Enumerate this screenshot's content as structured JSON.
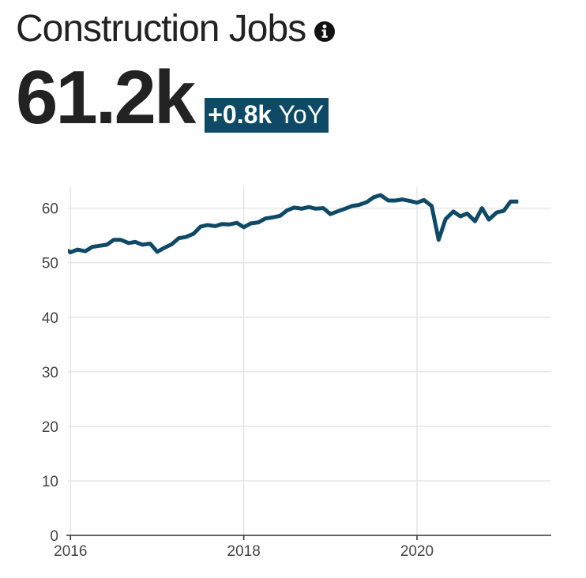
{
  "header": {
    "title": "Construction Jobs",
    "info_icon": "info-icon"
  },
  "kpi": {
    "value": "61.2k",
    "delta": "+0.8k",
    "delta_suffix": "YoY",
    "badge_color": "#0e4966"
  },
  "chart_data": {
    "type": "line",
    "title": "",
    "xlabel": "",
    "ylabel": "",
    "xlim": [
      2015.97,
      2021.55
    ],
    "ylim": [
      0,
      64
    ],
    "x_ticks": [
      2016,
      2018,
      2020
    ],
    "x_tick_labels": [
      "2016",
      "2018",
      "2020"
    ],
    "y_ticks": [
      0,
      10,
      20,
      30,
      40,
      50,
      60
    ],
    "y_tick_labels": [
      "0",
      "10",
      "20",
      "30",
      "40",
      "50",
      "60"
    ],
    "grid": true,
    "line_color": "#0e4966",
    "series": [
      {
        "name": "",
        "x": [
          2015.92,
          2016.0,
          2016.08,
          2016.17,
          2016.25,
          2016.33,
          2016.42,
          2016.5,
          2016.58,
          2016.67,
          2016.75,
          2016.83,
          2016.92,
          2017.0,
          2017.08,
          2017.17,
          2017.25,
          2017.33,
          2017.42,
          2017.5,
          2017.58,
          2017.67,
          2017.75,
          2017.83,
          2017.92,
          2018.0,
          2018.08,
          2018.17,
          2018.25,
          2018.33,
          2018.42,
          2018.5,
          2018.58,
          2018.67,
          2018.75,
          2018.83,
          2018.92,
          2019.0,
          2019.08,
          2019.17,
          2019.25,
          2019.33,
          2019.42,
          2019.5,
          2019.58,
          2019.67,
          2019.75,
          2019.83,
          2019.92,
          2020.0,
          2020.08,
          2020.17,
          2020.25,
          2020.33,
          2020.42,
          2020.5,
          2020.58,
          2020.67,
          2020.75,
          2020.83,
          2020.92,
          2021.0,
          2021.08,
          2021.17
        ],
        "values": [
          52.6,
          51.9,
          52.4,
          52.1,
          52.9,
          53.1,
          53.3,
          54.2,
          54.2,
          53.6,
          53.8,
          53.3,
          53.5,
          52.0,
          52.7,
          53.4,
          54.5,
          54.7,
          55.3,
          56.6,
          56.9,
          56.7,
          57.1,
          57.0,
          57.3,
          56.5,
          57.2,
          57.4,
          58.1,
          58.3,
          58.6,
          59.6,
          60.1,
          59.9,
          60.2,
          59.9,
          60.0,
          58.9,
          59.4,
          59.9,
          60.4,
          60.6,
          61.1,
          62.0,
          62.4,
          61.4,
          61.4,
          61.6,
          61.3,
          61.0,
          61.5,
          60.4,
          54.2,
          58.0,
          59.4,
          58.5,
          59.0,
          57.6,
          60.0,
          57.9,
          59.2,
          59.5,
          61.2,
          61.2
        ]
      }
    ]
  }
}
